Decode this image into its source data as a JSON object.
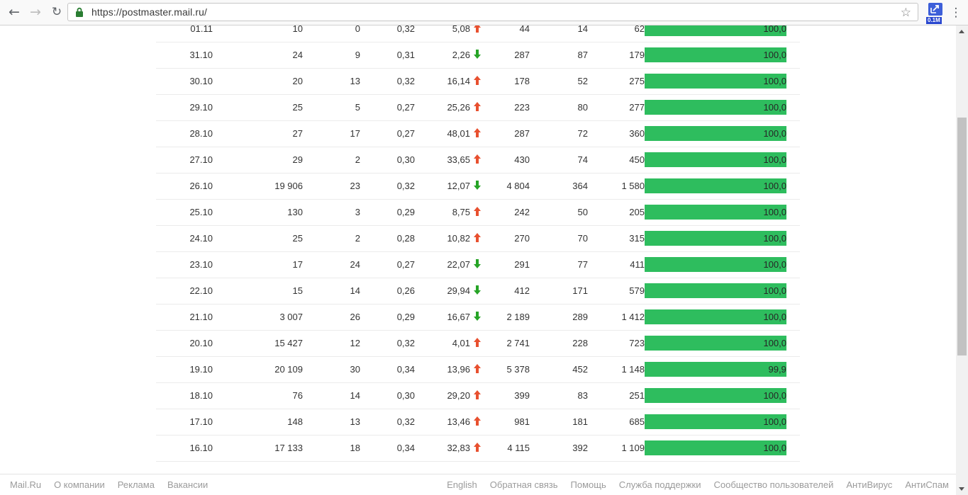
{
  "browser": {
    "url": "https://postmaster.mail.ru/",
    "extension_badge": "0.1M"
  },
  "table": {
    "rows": [
      {
        "date": "01.11",
        "c2": "10",
        "c3": "0",
        "c4": "0,32",
        "delta": "5,08",
        "trend": "up",
        "c6": "44",
        "c7": "14",
        "c8": "62",
        "bar_label": "100,0",
        "bar_pct": 100.0
      },
      {
        "date": "31.10",
        "c2": "24",
        "c3": "9",
        "c4": "0,31",
        "delta": "2,26",
        "trend": "down",
        "c6": "287",
        "c7": "87",
        "c8": "179",
        "bar_label": "100,0",
        "bar_pct": 100.0
      },
      {
        "date": "30.10",
        "c2": "20",
        "c3": "13",
        "c4": "0,32",
        "delta": "16,14",
        "trend": "up",
        "c6": "178",
        "c7": "52",
        "c8": "275",
        "bar_label": "100,0",
        "bar_pct": 100.0
      },
      {
        "date": "29.10",
        "c2": "25",
        "c3": "5",
        "c4": "0,27",
        "delta": "25,26",
        "trend": "up",
        "c6": "223",
        "c7": "80",
        "c8": "277",
        "bar_label": "100,0",
        "bar_pct": 100.0
      },
      {
        "date": "28.10",
        "c2": "27",
        "c3": "17",
        "c4": "0,27",
        "delta": "48,01",
        "trend": "up",
        "c6": "287",
        "c7": "72",
        "c8": "360",
        "bar_label": "100,0",
        "bar_pct": 100.0
      },
      {
        "date": "27.10",
        "c2": "29",
        "c3": "2",
        "c4": "0,30",
        "delta": "33,65",
        "trend": "up",
        "c6": "430",
        "c7": "74",
        "c8": "450",
        "bar_label": "100,0",
        "bar_pct": 100.0
      },
      {
        "date": "26.10",
        "c2": "19 906",
        "c3": "23",
        "c4": "0,32",
        "delta": "12,07",
        "trend": "down",
        "c6": "4 804",
        "c7": "364",
        "c8": "1 580",
        "bar_label": "100,0",
        "bar_pct": 100.0
      },
      {
        "date": "25.10",
        "c2": "130",
        "c3": "3",
        "c4": "0,29",
        "delta": "8,75",
        "trend": "up",
        "c6": "242",
        "c7": "50",
        "c8": "205",
        "bar_label": "100,0",
        "bar_pct": 100.0
      },
      {
        "date": "24.10",
        "c2": "25",
        "c3": "2",
        "c4": "0,28",
        "delta": "10,82",
        "trend": "up",
        "c6": "270",
        "c7": "70",
        "c8": "315",
        "bar_label": "100,0",
        "bar_pct": 100.0
      },
      {
        "date": "23.10",
        "c2": "17",
        "c3": "24",
        "c4": "0,27",
        "delta": "22,07",
        "trend": "down",
        "c6": "291",
        "c7": "77",
        "c8": "411",
        "bar_label": "100,0",
        "bar_pct": 100.0
      },
      {
        "date": "22.10",
        "c2": "15",
        "c3": "14",
        "c4": "0,26",
        "delta": "29,94",
        "trend": "down",
        "c6": "412",
        "c7": "171",
        "c8": "579",
        "bar_label": "100,0",
        "bar_pct": 100.0
      },
      {
        "date": "21.10",
        "c2": "3 007",
        "c3": "26",
        "c4": "0,29",
        "delta": "16,67",
        "trend": "down",
        "c6": "2 189",
        "c7": "289",
        "c8": "1 412",
        "bar_label": "100,0",
        "bar_pct": 100.0
      },
      {
        "date": "20.10",
        "c2": "15 427",
        "c3": "12",
        "c4": "0,32",
        "delta": "4,01",
        "trend": "up",
        "c6": "2 741",
        "c7": "228",
        "c8": "723",
        "bar_label": "100,0",
        "bar_pct": 100.0
      },
      {
        "date": "19.10",
        "c2": "20 109",
        "c3": "30",
        "c4": "0,34",
        "delta": "13,96",
        "trend": "up",
        "c6": "5 378",
        "c7": "452",
        "c8": "1 148",
        "bar_label": "99,9",
        "bar_pct": 99.9
      },
      {
        "date": "18.10",
        "c2": "76",
        "c3": "14",
        "c4": "0,30",
        "delta": "29,20",
        "trend": "up",
        "c6": "399",
        "c7": "83",
        "c8": "251",
        "bar_label": "100,0",
        "bar_pct": 100.0
      },
      {
        "date": "17.10",
        "c2": "148",
        "c3": "13",
        "c4": "0,32",
        "delta": "13,46",
        "trend": "up",
        "c6": "981",
        "c7": "181",
        "c8": "685",
        "bar_label": "100,0",
        "bar_pct": 100.0
      },
      {
        "date": "16.10",
        "c2": "17 133",
        "c3": "18",
        "c4": "0,34",
        "delta": "32,83",
        "trend": "up",
        "c6": "4 115",
        "c7": "392",
        "c8": "1 109",
        "bar_label": "100,0",
        "bar_pct": 100.0
      }
    ]
  },
  "footer": {
    "left_links": [
      "Mail.Ru",
      "О компании",
      "Реклама",
      "Вакансии"
    ],
    "right_links": [
      "English",
      "Обратная связь",
      "Помощь",
      "Служба поддержки",
      "Сообщество пользователей",
      "АнтиВирус",
      "АнтиСпам"
    ]
  },
  "colors": {
    "bar_green": "#2ebd5e",
    "arrow_up": "#e8502f",
    "arrow_down": "#26a426"
  }
}
